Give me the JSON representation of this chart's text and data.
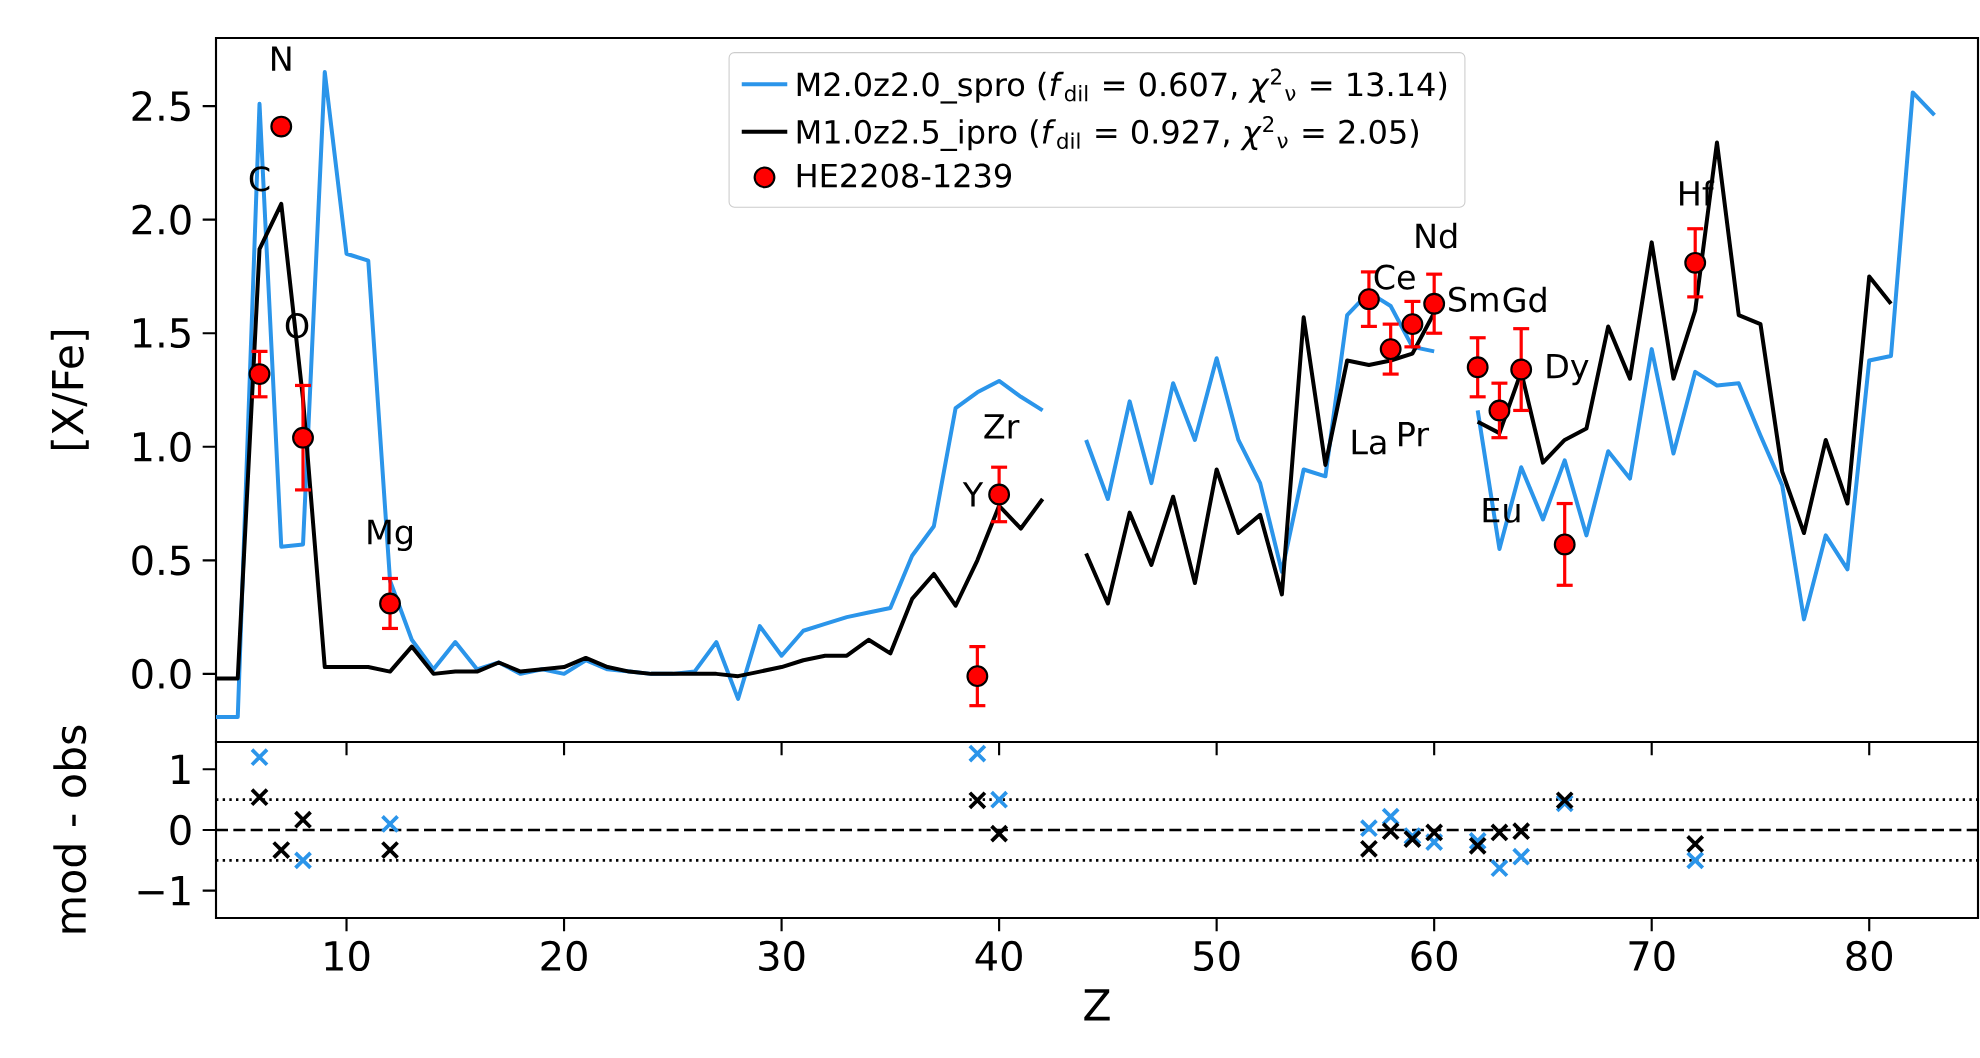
{
  "chart_data": [
    {
      "type": "line",
      "ylabel": "[X/Fe]",
      "xlim": [
        4,
        85
      ],
      "ylim": [
        -0.3,
        2.8
      ],
      "xticks": [
        10,
        20,
        30,
        40,
        50,
        60,
        70,
        80
      ],
      "yticks": [
        {
          "value": 0,
          "label": "0.0"
        },
        {
          "value": 0.5,
          "label": "0.5"
        },
        {
          "value": 1,
          "label": "1.0"
        },
        {
          "value": 1.5,
          "label": "1.5"
        },
        {
          "value": 2,
          "label": "2.0"
        },
        {
          "value": 2.5,
          "label": "2.5"
        }
      ],
      "tick_labels": "y",
      "legend": "top",
      "x": [
        4,
        5,
        6,
        7,
        8,
        9,
        10,
        11,
        12,
        13,
        14,
        15,
        16,
        17,
        18,
        19,
        20,
        21,
        22,
        23,
        24,
        25,
        26,
        27,
        28,
        29,
        30,
        31,
        32,
        33,
        34,
        35,
        36,
        37,
        38,
        39,
        40,
        41,
        42,
        43,
        44,
        45,
        46,
        47,
        48,
        49,
        50,
        51,
        52,
        53,
        54,
        55,
        56,
        57,
        58,
        59,
        60,
        61,
        62,
        63,
        64,
        65,
        66,
        67,
        68,
        69,
        70,
        71,
        72,
        73,
        74,
        75,
        76,
        77,
        78,
        79,
        80,
        81,
        82,
        83
      ],
      "series": [
        {
          "name": "M2.0z2.0_spro (*f*$_{dil}$ = 0.607, *χ*$^{2}$$_{ν}$ = 13.14)",
          "color": "#2b95ea",
          "type": "line",
          "marker": "none",
          "values": [
            -0.19,
            -0.19,
            2.51,
            0.56,
            0.57,
            2.65,
            1.85,
            1.82,
            0.41,
            0.15,
            0.02,
            0.14,
            0.02,
            0.05,
            0.0,
            0.02,
            0.0,
            0.06,
            0.02,
            0.01,
            0.0,
            0.0,
            0.01,
            0.14,
            -0.11,
            0.21,
            0.08,
            0.19,
            0.22,
            0.25,
            0.27,
            0.29,
            0.52,
            0.65,
            1.17,
            1.24,
            1.29,
            1.22,
            1.16,
            null,
            1.03,
            0.77,
            1.2,
            0.84,
            1.28,
            1.03,
            1.39,
            1.03,
            0.84,
            0.45,
            0.9,
            0.87,
            1.58,
            1.68,
            1.62,
            1.44,
            1.42,
            null,
            1.16,
            0.55,
            0.91,
            0.68,
            0.94,
            0.61,
            0.98,
            0.86,
            1.43,
            0.97,
            1.33,
            1.27,
            1.28,
            1.05,
            0.83,
            0.24,
            0.61,
            0.46,
            1.38,
            1.4,
            2.56,
            2.46
          ]
        },
        {
          "name": "M1.0z2.5_ipro (*f*$_{dil}$ = 0.927, *χ*$^{2}$$_{ν}$ = 2.05)",
          "color": "#000000",
          "type": "line",
          "marker": "none",
          "values": [
            -0.02,
            -0.02,
            1.87,
            2.07,
            1.21,
            0.03,
            0.03,
            0.03,
            0.01,
            0.12,
            0.0,
            0.01,
            0.01,
            0.05,
            0.01,
            0.02,
            0.03,
            0.07,
            0.03,
            0.01,
            0.0,
            0.0,
            0.0,
            0.0,
            -0.01,
            0.01,
            0.03,
            0.06,
            0.08,
            0.08,
            0.15,
            0.09,
            0.33,
            0.44,
            0.3,
            0.5,
            0.74,
            0.64,
            0.77,
            null,
            0.53,
            0.31,
            0.71,
            0.48,
            0.78,
            0.4,
            0.9,
            0.62,
            0.7,
            0.35,
            1.57,
            0.92,
            1.38,
            1.36,
            1.38,
            1.41,
            1.59,
            null,
            1.11,
            1.06,
            1.33,
            0.93,
            1.03,
            1.08,
            1.53,
            1.3,
            1.9,
            1.3,
            1.6,
            2.34,
            1.58,
            1.54,
            0.89,
            0.62,
            1.03,
            0.75,
            1.75,
            1.63,
            null,
            null
          ]
        },
        {
          "name": "HE2208-1239",
          "color": "#ff0000",
          "type": "scatter",
          "marker": "circle",
          "x": [
            6,
            7,
            8,
            12,
            39,
            40,
            57,
            58,
            59,
            60,
            62,
            63,
            64,
            66,
            72
          ],
          "values": [
            1.32,
            2.41,
            1.04,
            0.31,
            -0.01,
            0.79,
            1.65,
            1.43,
            1.54,
            1.63,
            1.35,
            1.16,
            1.34,
            0.57,
            1.81
          ],
          "errors": [
            0.1,
            null,
            0.23,
            0.11,
            0.13,
            0.12,
            0.12,
            0.11,
            0.1,
            0.13,
            0.13,
            0.12,
            0.18,
            0.18,
            0.15
          ]
        }
      ],
      "annotations": [
        "C",
        {
          "text": "N",
          "x": 7,
          "y": 2.41
        },
        {
          "text": "O",
          "x": 8,
          "y": 1.04
        },
        {
          "text": "Mg",
          "x": 12,
          "y": 0.31
        },
        "Y",
        {
          "text": "Zr",
          "x": 40,
          "y": 0.79
        },
        "La",
        {
          "text": "Ce",
          "x": 58,
          "y": 1.43
        },
        {
          "text": "Pr",
          "x": 59,
          "y": 1.54
        },
        {
          "text": "Nd",
          "x": 60,
          "y": 1.63
        },
        {
          "text": "Sm",
          "x": 62,
          "y": 1.35
        },
        {
          "text": "Eu",
          "x": 63,
          "y": 1.16
        },
        {
          "text": "Gd",
          "x": 64,
          "y": 1.34
        },
        "Dy",
        {
          "text": "Hf",
          "x": 72,
          "y": 1.81
        }
      ]
    },
    {
      "type": "scatter",
      "xlabel": "Z",
      "ylabel": "mod - obs",
      "xlim": [
        4,
        85
      ],
      "ylim": [
        -1.45,
        1.45
      ],
      "xticks": [
        10,
        20,
        30,
        40,
        50,
        60,
        70,
        80
      ],
      "yticks": [
        {
          "value": -1,
          "label": "−1"
        },
        0,
        1
      ],
      "marker": "cross",
      "series": [
        {
          "color": "#2b95ea",
          "x": [
            6,
            8,
            12,
            39,
            40,
            57,
            58,
            59,
            60,
            62,
            63,
            64,
            66,
            72
          ],
          "values": [
            1.2,
            -0.5,
            0.1,
            1.26,
            0.5,
            0.03,
            0.22,
            -0.1,
            -0.2,
            -0.18,
            -0.63,
            -0.44,
            0.44,
            -0.5
          ]
        },
        {
          "color": "#000000",
          "x": [
            6,
            7,
            8,
            12,
            39,
            40,
            57,
            58,
            59,
            60,
            62,
            63,
            64,
            66,
            72
          ],
          "values": [
            0.54,
            -0.33,
            0.17,
            -0.33,
            0.49,
            -0.06,
            -0.31,
            -0.02,
            -0.15,
            -0.04,
            -0.26,
            -0.04,
            -0.02,
            0.49,
            -0.23
          ]
        }
      ],
      "ref_lines": [
        {
          "axis": "y",
          "value": 0,
          "line_style": "dashed",
          "color": "#000000"
        },
        {
          "axis": "y",
          "value": 0.5,
          "line_style": "dotted",
          "color": "#000000"
        },
        {
          "axis": "y",
          "value": -0.5,
          "line_style": "dotted",
          "color": "#000000"
        }
      ]
    }
  ]
}
